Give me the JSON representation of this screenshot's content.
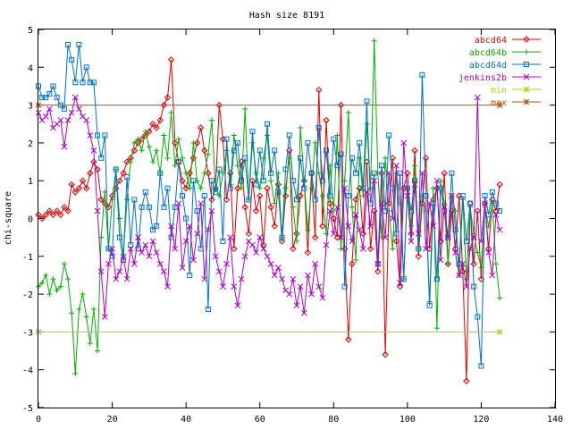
{
  "chart_data": {
    "type": "line",
    "title": "Hash size 8191",
    "xlabel": "",
    "ylabel": "chi-square",
    "xlim": [
      0,
      140
    ],
    "ylim": [
      -5,
      5
    ],
    "xticks": [
      "0",
      "20",
      "40",
      "60",
      "80",
      "100",
      "120",
      "140"
    ],
    "yticks": [
      "5",
      "4",
      "3",
      "2",
      "1",
      "0",
      "-1",
      "-2",
      "-3",
      "-4",
      "-5"
    ],
    "grid": false,
    "legend_position": "top-right",
    "series": [
      {
        "name": "abcd64",
        "color": "#e00000",
        "marker": "diamond",
        "x": [
          0,
          1,
          2,
          3,
          4,
          5,
          6,
          7,
          8,
          9,
          10,
          11,
          12,
          13,
          14,
          15,
          16,
          17,
          18,
          19,
          20,
          21,
          22,
          23,
          24,
          25,
          26,
          27,
          28,
          29,
          30,
          31,
          32,
          33,
          34,
          35,
          36,
          37,
          38,
          39,
          40,
          41,
          42,
          43,
          44,
          45,
          46,
          47,
          48,
          49,
          50,
          51,
          52,
          53,
          54,
          55,
          56,
          57,
          58,
          59,
          60,
          61,
          62,
          63,
          64,
          65,
          66,
          67,
          68,
          69,
          70,
          71,
          72,
          73,
          74,
          75,
          76,
          77,
          78,
          79,
          80,
          81,
          82,
          83,
          84,
          85,
          86,
          87,
          88,
          89,
          90,
          91,
          92,
          93,
          94,
          95,
          96,
          97,
          98,
          99,
          100,
          101,
          102,
          103,
          104,
          105,
          106,
          107,
          108,
          109,
          110,
          111,
          112,
          113,
          114,
          115,
          116,
          117,
          118,
          119,
          120,
          121,
          122,
          123,
          124,
          125
        ],
        "y": [
          0.1,
          0.0,
          0.1,
          0.2,
          0.1,
          0.2,
          0.1,
          0.3,
          0.2,
          0.9,
          0.7,
          0.8,
          1.0,
          0.8,
          1.2,
          1.5,
          1.3,
          0.5,
          0.4,
          0.3,
          0.6,
          0.8,
          1.0,
          1.2,
          1.5,
          1.6,
          1.8,
          2.0,
          2.1,
          2.2,
          2.3,
          2.5,
          2.4,
          2.6,
          3.0,
          3.2,
          4.2,
          2.0,
          1.5,
          1.0,
          0.8,
          1.2,
          1.6,
          2.0,
          2.4,
          1.8,
          1.2,
          0.5,
          0.8,
          3.0,
          2.1,
          0.5,
          1.2,
          -0.8,
          0.8,
          1.5,
          0.3,
          -0.4,
          1.0,
          0.2,
          0.6,
          -0.7,
          0.8,
          0.3,
          -0.2,
          0.9,
          -0.6,
          0.6,
          1.8,
          -0.8,
          -0.4,
          0.6,
          1.0,
          -0.9,
          1.2,
          -0.5,
          3.4,
          -0.2,
          2.6,
          0.4,
          0.0,
          -0.5,
          3.0,
          -0.8,
          -3.2,
          -1.2,
          0.5,
          0.8,
          -0.4,
          1.5,
          -0.8,
          0.2,
          -1.4,
          1.2,
          -3.6,
          0.4,
          1.6,
          -0.6,
          -1.8,
          0.8,
          1.2,
          -0.4,
          1.8,
          -1.0,
          0.4,
          1.6,
          -0.8,
          0.5,
          0.8,
          -0.6,
          1.2,
          -1.2,
          0.2,
          -0.8,
          0.6,
          -1.4,
          -4.3,
          0.4,
          -1.2,
          0.2,
          -1.6,
          0.4,
          -0.8,
          0.5,
          0.2,
          0.9
        ]
      },
      {
        "name": "abcd64b",
        "color": "#00b000",
        "marker": "plus",
        "x": [
          0,
          1,
          2,
          3,
          4,
          5,
          6,
          7,
          8,
          9,
          10,
          11,
          12,
          13,
          14,
          15,
          16,
          17,
          18,
          19,
          20,
          21,
          22,
          23,
          24,
          25,
          26,
          27,
          28,
          29,
          30,
          31,
          32,
          33,
          34,
          35,
          36,
          37,
          38,
          39,
          40,
          41,
          42,
          43,
          44,
          45,
          46,
          47,
          48,
          49,
          50,
          51,
          52,
          53,
          54,
          55,
          56,
          57,
          58,
          59,
          60,
          61,
          62,
          63,
          64,
          65,
          66,
          67,
          68,
          69,
          70,
          71,
          72,
          73,
          74,
          75,
          76,
          77,
          78,
          79,
          80,
          81,
          82,
          83,
          84,
          85,
          86,
          87,
          88,
          89,
          90,
          91,
          92,
          93,
          94,
          95,
          96,
          97,
          98,
          99,
          100,
          101,
          102,
          103,
          104,
          105,
          106,
          107,
          108,
          109,
          110,
          111,
          112,
          113,
          114,
          115,
          116,
          117,
          118,
          119,
          120,
          121,
          122,
          123,
          124,
          125
        ],
        "y": [
          -1.8,
          -1.7,
          -1.5,
          -2.0,
          -1.6,
          -1.9,
          -1.8,
          -1.2,
          -1.6,
          -2.5,
          -4.1,
          -2.4,
          -2.0,
          -2.6,
          -3.3,
          -2.4,
          -3.5,
          -0.5,
          0.7,
          -0.8,
          0.5,
          1.3,
          0.0,
          -1.0,
          0.5,
          1.5,
          2.0,
          2.1,
          1.8,
          2.3,
          1.9,
          1.5,
          1.8,
          1.2,
          2.2,
          1.6,
          2.8,
          1.4,
          2.1,
          1.6,
          1.2,
          0.8,
          2.0,
          1.0,
          0.8,
          1.2,
          1.7,
          2.6,
          0.8,
          0.6,
          1.2,
          1.8,
          0.9,
          2.2,
          1.4,
          0.8,
          2.9,
          0.5,
          2.0,
          1.2,
          0.8,
          1.6,
          2.2,
          1.0,
          0.4,
          1.2,
          -0.5,
          0.8,
          1.6,
          0.3,
          -0.6,
          2.4,
          1.0,
          -0.3,
          0.8,
          2.0,
          1.2,
          0.6,
          -0.4,
          1.4,
          0.2,
          2.2,
          -0.8,
          1.0,
          2.8,
          0.3,
          -1.1,
          1.6,
          0.6,
          2.5,
          0.8,
          4.7,
          1.2,
          -0.5,
          1.6,
          0.2,
          -0.8,
          1.2,
          0.4,
          -1.6,
          0.8,
          -0.2,
          1.4,
          -0.8,
          0.6,
          0.2,
          -2.2,
          0.8,
          -2.9,
          1.0,
          0.4,
          -1.2,
          0.6,
          0.2,
          -1.5,
          0.5,
          -1.6,
          0.3,
          -0.4,
          -0.9,
          -1.3,
          0.3,
          -0.2,
          0.4,
          -1.2,
          -2.1
        ]
      },
      {
        "name": "abcd64d",
        "color": "#0070d0",
        "marker": "square",
        "x": [
          0,
          1,
          2,
          3,
          4,
          5,
          6,
          7,
          8,
          9,
          10,
          11,
          12,
          13,
          14,
          15,
          16,
          17,
          18,
          19,
          20,
          21,
          22,
          23,
          24,
          25,
          26,
          27,
          28,
          29,
          30,
          31,
          32,
          33,
          34,
          35,
          36,
          37,
          38,
          39,
          40,
          41,
          42,
          43,
          44,
          45,
          46,
          47,
          48,
          49,
          50,
          51,
          52,
          53,
          54,
          55,
          56,
          57,
          58,
          59,
          60,
          61,
          62,
          63,
          64,
          65,
          66,
          67,
          68,
          69,
          70,
          71,
          72,
          73,
          74,
          75,
          76,
          77,
          78,
          79,
          80,
          81,
          82,
          83,
          84,
          85,
          86,
          87,
          88,
          89,
          90,
          91,
          92,
          93,
          94,
          95,
          96,
          97,
          98,
          99,
          100,
          101,
          102,
          103,
          104,
          105,
          106,
          107,
          108,
          109,
          110,
          111,
          112,
          113,
          114,
          115,
          116,
          117,
          118,
          119,
          120,
          121,
          122,
          123,
          124,
          125
        ],
        "y": [
          3.5,
          3.2,
          3.2,
          3.3,
          3.5,
          3.2,
          3.0,
          2.9,
          4.6,
          4.2,
          3.6,
          4.6,
          3.6,
          4.0,
          3.6,
          3.6,
          2.2,
          1.6,
          2.2,
          -0.8,
          -1.0,
          1.3,
          -0.5,
          -1.1,
          1.1,
          -0.7,
          0.5,
          -0.8,
          0.3,
          0.7,
          0.3,
          -0.3,
          -0.2,
          1.2,
          0.3,
          0.8,
          -0.5,
          0.3,
          1.5,
          0.6,
          0.0,
          -1.5,
          1.0,
          0.2,
          -0.8,
          0.6,
          -2.4,
          1.0,
          0.7,
          1.3,
          -0.6,
          2.1,
          0.8,
          1.8,
          2.0,
          1.0,
          1.6,
          0.5,
          2.3,
          0.9,
          1.8,
          1.0,
          2.5,
          1.2,
          1.8,
          0.7,
          -0.5,
          1.3,
          2.2,
          1.0,
          0.5,
          1.6,
          0.8,
          2.0,
          1.2,
          0.5,
          2.4,
          1.0,
          1.8,
          0.6,
          2.1,
          1.4,
          1.7,
          -1.8,
          0.6,
          1.6,
          1.2,
          2.0,
          0.8,
          3.1,
          0.4,
          1.2,
          -1.2,
          1.4,
          0.2,
          2.2,
          0.8,
          -0.4,
          1.2,
          -1.6,
          0.8,
          0.2,
          1.0,
          -0.8,
          3.8,
          0.6,
          -2.3,
          0.4,
          -1.6,
          0.8,
          0.2,
          -0.5,
          1.2,
          -0.3,
          -1.2,
          0.6,
          -0.6,
          0.4,
          -1.8,
          -2.6,
          -3.9,
          0.6,
          0.1,
          0.7,
          0.4,
          0.2
        ]
      },
      {
        "name": "jenkins2b",
        "color": "#b000c8",
        "marker": "cross",
        "x": [
          0,
          1,
          2,
          3,
          4,
          5,
          6,
          7,
          8,
          9,
          10,
          11,
          12,
          13,
          14,
          15,
          16,
          17,
          18,
          19,
          20,
          21,
          22,
          23,
          24,
          25,
          26,
          27,
          28,
          29,
          30,
          31,
          32,
          33,
          34,
          35,
          36,
          37,
          38,
          39,
          40,
          41,
          42,
          43,
          44,
          45,
          46,
          47,
          48,
          49,
          50,
          51,
          52,
          53,
          54,
          55,
          56,
          57,
          58,
          59,
          60,
          61,
          62,
          63,
          64,
          65,
          66,
          67,
          68,
          69,
          70,
          71,
          72,
          73,
          74,
          75,
          76,
          77,
          78,
          79,
          80,
          81,
          82,
          83,
          84,
          85,
          86,
          87,
          88,
          89,
          90,
          91,
          92,
          93,
          94,
          95,
          96,
          97,
          98,
          99,
          100,
          101,
          102,
          103,
          104,
          105,
          106,
          107,
          108,
          109,
          110,
          111,
          112,
          113,
          114,
          115,
          116,
          117,
          118,
          119,
          120,
          121,
          122,
          123,
          124,
          125
        ],
        "y": [
          2.8,
          2.6,
          2.7,
          2.9,
          2.4,
          2.5,
          2.6,
          1.9,
          2.6,
          2.8,
          3.2,
          2.9,
          2.7,
          2.6,
          2.2,
          1.8,
          0.2,
          -1.4,
          -2.6,
          -1.2,
          -0.8,
          -1.6,
          -1.4,
          -1.0,
          -1.6,
          -0.8,
          -1.2,
          -0.5,
          -0.9,
          -0.7,
          -1.0,
          -0.6,
          -0.9,
          -1.2,
          -1.4,
          -1.8,
          -0.2,
          -0.8,
          0.4,
          -1.3,
          -0.6,
          -0.2,
          -1.1,
          -0.4,
          0.4,
          -1.6,
          -0.3,
          0.2,
          -1.0,
          -1.4,
          -1.8,
          -1.2,
          -0.5,
          -1.8,
          -2.3,
          -1.6,
          -1.0,
          -0.6,
          -0.7,
          -0.9,
          -0.5,
          -0.8,
          -1.0,
          -1.2,
          -1.5,
          -1.3,
          -1.6,
          -1.9,
          -2.0,
          -1.6,
          -2.3,
          -1.8,
          -2.5,
          -1.5,
          -2.0,
          -1.2,
          -1.8,
          -2.1,
          -0.7,
          0.2,
          -0.4,
          0.3,
          -0.5,
          0.8,
          -0.2,
          -0.6,
          0.1,
          -0.3,
          -0.8,
          0.7,
          -0.2,
          1.0,
          -1.2,
          0.4,
          -0.5,
          1.2,
          0.0,
          1.4,
          -1.7,
          2.0,
          0.6,
          -0.6,
          0.9,
          -0.4,
          1.2,
          -0.8,
          0.4,
          -0.2,
          1.0,
          -1.1,
          0.3,
          -0.5,
          0.6,
          -0.9,
          -1.5,
          -1.2,
          -1.8,
          -0.8,
          -0.5,
          3.2,
          -0.6,
          0.4,
          -0.9,
          -1.5,
          0.1,
          -0.3
        ]
      },
      {
        "name": "min",
        "color": "#a8d800",
        "marker": "star",
        "x": [
          0,
          125
        ],
        "y": [
          -3,
          -3
        ]
      },
      {
        "name": "max",
        "color": "#b85000",
        "marker": "star",
        "x": [
          0,
          125
        ],
        "y": [
          3,
          3
        ]
      }
    ]
  }
}
